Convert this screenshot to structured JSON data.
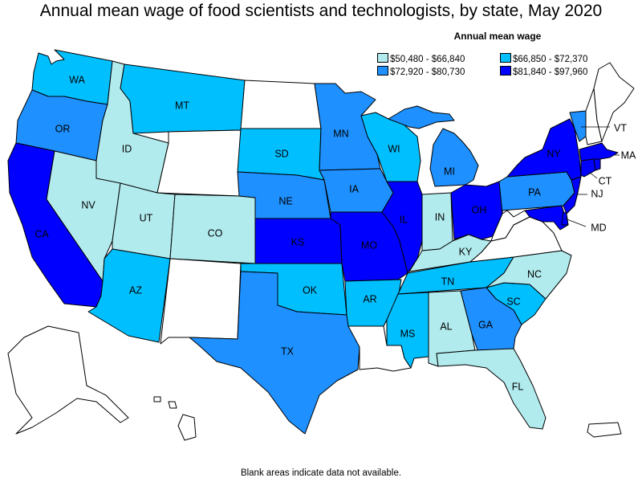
{
  "title": "Annual mean wage of food scientists and technologists, by state, May 2020",
  "legend": {
    "title": "Annual mean wage",
    "items": [
      {
        "range": "$50,480 - $66,840",
        "color": "#b2ebee"
      },
      {
        "range": "$66,850 - $72,370",
        "color": "#00bfff"
      },
      {
        "range": "$72,920 - $80,730",
        "color": "#1e90ff"
      },
      {
        "range": "$81,840 - $97,960",
        "color": "#0000ff"
      }
    ]
  },
  "no_data_color": "#ffffff",
  "footnote": "Blank areas indicate data not available.",
  "states": {
    "WA": {
      "label": "WA",
      "class": 1
    },
    "OR": {
      "label": "OR",
      "class": 2
    },
    "CA": {
      "label": "CA",
      "class": 3
    },
    "ID": {
      "label": "ID",
      "class": 0
    },
    "NV": {
      "label": "NV",
      "class": 0
    },
    "MT": {
      "label": "MT",
      "class": 1
    },
    "WY": {
      "label": "",
      "class": null
    },
    "UT": {
      "label": "UT",
      "class": 0
    },
    "AZ": {
      "label": "AZ",
      "class": 1
    },
    "CO": {
      "label": "CO",
      "class": 0
    },
    "NM": {
      "label": "",
      "class": null
    },
    "ND": {
      "label": "",
      "class": null
    },
    "SD": {
      "label": "SD",
      "class": 1
    },
    "NE": {
      "label": "NE",
      "class": 2
    },
    "KS": {
      "label": "KS",
      "class": 3
    },
    "OK": {
      "label": "OK",
      "class": 1
    },
    "TX": {
      "label": "TX",
      "class": 2
    },
    "MN": {
      "label": "MN",
      "class": 2
    },
    "IA": {
      "label": "IA",
      "class": 2
    },
    "MO": {
      "label": "MO",
      "class": 3
    },
    "AR": {
      "label": "AR",
      "class": 1
    },
    "LA": {
      "label": "",
      "class": null
    },
    "WI": {
      "label": "WI",
      "class": 1
    },
    "IL": {
      "label": "IL",
      "class": 3
    },
    "MI": {
      "label": "MI",
      "class": 2
    },
    "IN": {
      "label": "IN",
      "class": 0
    },
    "OH": {
      "label": "OH",
      "class": 3
    },
    "KY": {
      "label": "KY",
      "class": 0
    },
    "TN": {
      "label": "TN",
      "class": 1
    },
    "MS": {
      "label": "MS",
      "class": 1
    },
    "AL": {
      "label": "AL",
      "class": 0
    },
    "GA": {
      "label": "GA",
      "class": 2
    },
    "FL": {
      "label": "FL",
      "class": 0
    },
    "SC": {
      "label": "SC",
      "class": 1
    },
    "NC": {
      "label": "NC",
      "class": 0
    },
    "VA": {
      "label": "",
      "class": null
    },
    "WV": {
      "label": "",
      "class": null
    },
    "PA": {
      "label": "PA",
      "class": 2
    },
    "NY": {
      "label": "NY",
      "class": 3
    },
    "VT": {
      "label": "VT",
      "class": 2
    },
    "NH": {
      "label": "",
      "class": null
    },
    "ME": {
      "label": "",
      "class": null
    },
    "MA": {
      "label": "MA",
      "class": 3
    },
    "CT": {
      "label": "CT",
      "class": 3
    },
    "RI": {
      "label": "",
      "class": 3
    },
    "NJ": {
      "label": "NJ",
      "class": 3
    },
    "DE": {
      "label": "",
      "class": 3
    },
    "MD": {
      "label": "MD",
      "class": 3
    },
    "AK": {
      "label": "",
      "class": null
    },
    "HI": {
      "label": "",
      "class": null
    },
    "PR": {
      "label": "",
      "class": null
    }
  }
}
